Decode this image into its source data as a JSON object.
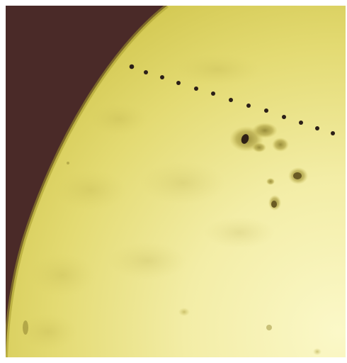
{
  "scene": {
    "subject": "solar-limb-with-transit-sequence",
    "colors": {
      "space": "#4a2a28",
      "sun_limb": "#c7bd3e",
      "sun_mid": "#e4dc74",
      "sun_bright": "#f7f3ba",
      "sunspot_umbra": "#2e2016",
      "sunspot_penumbra": "#9a8d35",
      "transit_dot": "#2b1f18"
    }
  }
}
